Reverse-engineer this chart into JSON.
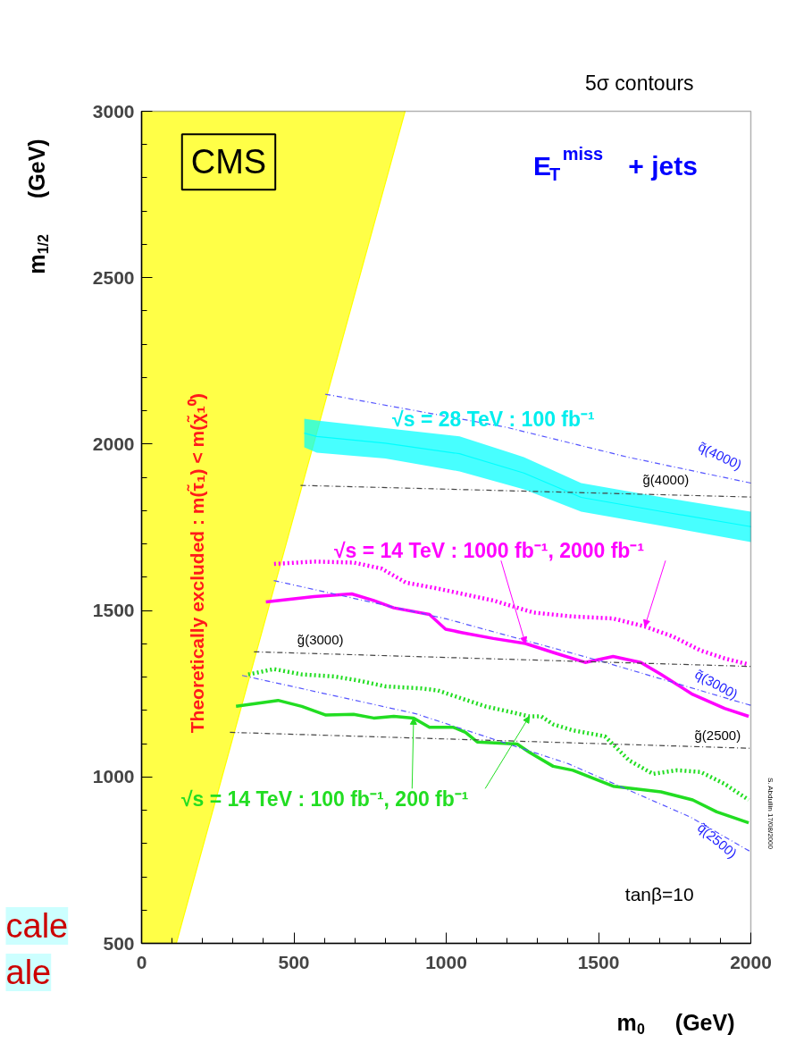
{
  "chart_data": {
    "type": "line",
    "title": "5σ contours",
    "xlabel": "m$_{0}$  (GeV)",
    "ylabel": "m$_{1/2}$  (GeV)",
    "xlim": [
      0,
      2000
    ],
    "ylim": [
      500,
      3000
    ],
    "xticks": [
      0,
      500,
      1000,
      1500,
      2000
    ],
    "yticks": [
      {
        "value": 500,
        "label": "500"
      },
      1000,
      1500,
      2000,
      2500,
      3000
    ],
    "series": [
      {
        "color": "#ffff00",
        "line_style": "solid",
        "x": [
          0,
          114,
          865
        ],
        "values": [
          500,
          500,
          3000
        ],
        "lower": [
          500,
          500,
          3000
        ],
        "upper": [
          3000,
          3000,
          3000
        ]
      },
      {
        "color": "#00ffff",
        "line_style": "solid",
        "x": [
          534,
          575,
          800,
          1044,
          1255,
          1443,
          1710,
          2000
        ],
        "values": [
          2033,
          2023,
          2003,
          1971,
          1913,
          1840,
          1797,
          1752
        ],
        "upper": [
          2076,
          2071,
          2048,
          2023,
          1961,
          1883,
          1840,
          1797
        ],
        "lower": [
          1990,
          1974,
          1957,
          1918,
          1864,
          1797,
          1754,
          1706
        ]
      },
      {
        "color": "#ff00ff",
        "line_style": "solid",
        "x": [
          408,
          566,
          690,
          762,
          828,
          945,
          998,
          1050,
          1155,
          1260,
          1351,
          1456,
          1548,
          1639,
          1705,
          1809,
          1914,
          1993
        ],
        "values": [
          1526,
          1542,
          1550,
          1530,
          1508,
          1488,
          1444,
          1434,
          1416,
          1401,
          1374,
          1344,
          1362,
          1344,
          1308,
          1248,
          1206,
          1182
        ]
      },
      {
        "color": "#ff00ff",
        "line_style": "dotted",
        "x": [
          435,
          566,
          696,
          788,
          867,
          972,
          1155,
          1286,
          1416,
          1548,
          1652,
          1744,
          1835,
          1914,
          1993
        ],
        "values": [
          1640,
          1647,
          1644,
          1626,
          1584,
          1566,
          1530,
          1494,
          1482,
          1476,
          1452,
          1422,
          1380,
          1356,
          1338
        ]
      },
      {
        "color": "#22dd22",
        "line_style": "solid",
        "x": [
          310,
          448,
          526,
          605,
          696,
          762,
          828,
          893,
          945,
          1024,
          1063,
          1102,
          1233,
          1273,
          1351,
          1416,
          1548,
          1705,
          1809,
          1888,
          1993
        ],
        "values": [
          1212,
          1230,
          1212,
          1186,
          1188,
          1177,
          1182,
          1177,
          1149,
          1149,
          1134,
          1105,
          1099,
          1074,
          1032,
          1020,
          972,
          955,
          931,
          895,
          862
        ]
      },
      {
        "color": "#22dd22",
        "line_style": "dotted",
        "x": [
          350,
          435,
          526,
          631,
          710,
          801,
          919,
          972,
          1050,
          1129,
          1207,
          1273,
          1312,
          1351,
          1416,
          1521,
          1600,
          1679,
          1757,
          1835,
          1914,
          1993
        ],
        "values": [
          1308,
          1324,
          1308,
          1302,
          1290,
          1272,
          1266,
          1260,
          1236,
          1212,
          1196,
          1182,
          1182,
          1158,
          1140,
          1122,
          1050,
          1009,
          1020,
          1015,
          979,
          931
        ]
      },
      {
        "color": "#5555ff",
        "line_style": "dashed",
        "x": [
          603,
          1200,
          1600,
          2000
        ],
        "values": [
          2150,
          2050,
          1960,
          1883
        ]
      },
      {
        "color": "#444444",
        "line_style": "dashed",
        "x": [
          522,
          2000
        ],
        "values": [
          1876,
          1841
        ]
      },
      {
        "color": "#5555ff",
        "line_style": "dashed",
        "x": [
          434,
          1000,
          1500,
          2000
        ],
        "values": [
          1590,
          1475,
          1350,
          1215
        ]
      },
      {
        "color": "#444444",
        "line_style": "dashed",
        "x": [
          369,
          2000
        ],
        "values": [
          1376,
          1332
        ]
      },
      {
        "color": "#5555ff",
        "line_style": "dashed",
        "x": [
          330,
          900,
          1400,
          1800,
          2000
        ],
        "values": [
          1305,
          1190,
          1040,
          880,
          775
        ]
      },
      {
        "color": "#444444",
        "line_style": "dashed",
        "x": [
          290,
          2000
        ],
        "values": [
          1134,
          1086
        ]
      }
    ],
    "annotations": [
      "CMS",
      "E$_{T}$$^{miss}$ + jets",
      "Theoretically excluded   :   m(τ̃₁) < m(χ̃₁⁰)",
      "√s = 28 TeV : 100 fb⁻¹",
      {
        "text": "√s = 14 TeV : 1000 fb⁻¹,  2000 fb⁻¹",
        "x": 1260,
        "y": 1401
      },
      {
        "text": "√s = 14 TeV : 100 fb⁻¹,  200 fb⁻¹",
        "x": 893,
        "y": 1177
      },
      "q̃(4000)",
      "g̃(4000)",
      "g̃(3000)",
      "q̃(3000)",
      "g̃(2500)",
      "q̃(2500)",
      "tanβ=10",
      "S. Abdullin  17/08/2000",
      "cale",
      "ale"
    ]
  }
}
